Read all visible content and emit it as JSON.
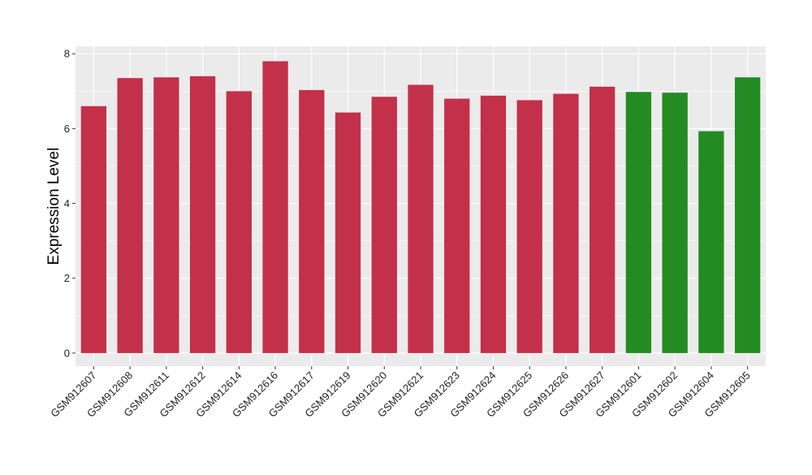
{
  "chart_data": {
    "type": "bar",
    "title": "",
    "xlabel": "",
    "ylabel": "Expression Level",
    "ylim": [
      -0.35,
      8.2
    ],
    "yticks": [
      0,
      2,
      4,
      6,
      8
    ],
    "categories": [
      "GSM912607",
      "GSM912608",
      "GSM912611",
      "GSM912612",
      "GSM912614",
      "GSM912616",
      "GSM912617",
      "GSM912619",
      "GSM912620",
      "GSM912621",
      "GSM912623",
      "GSM912624",
      "GSM912625",
      "GSM912626",
      "GSM912627",
      "GSM912601",
      "GSM912602",
      "GSM912604",
      "GSM912605"
    ],
    "values": [
      6.6,
      7.35,
      7.37,
      7.4,
      7.0,
      7.8,
      7.03,
      6.43,
      6.85,
      7.17,
      6.8,
      6.88,
      6.76,
      6.93,
      7.12,
      6.98,
      6.96,
      5.93,
      7.37
    ],
    "groups": [
      "a",
      "a",
      "a",
      "a",
      "a",
      "a",
      "a",
      "a",
      "a",
      "a",
      "a",
      "a",
      "a",
      "a",
      "a",
      "b",
      "b",
      "b",
      "b"
    ],
    "group_colors": {
      "a": "#C3304A",
      "b": "#228B22"
    },
    "panel_background": "#EBEBEB",
    "grid_color": "#FFFFFF",
    "grid": true,
    "legend": "none"
  }
}
